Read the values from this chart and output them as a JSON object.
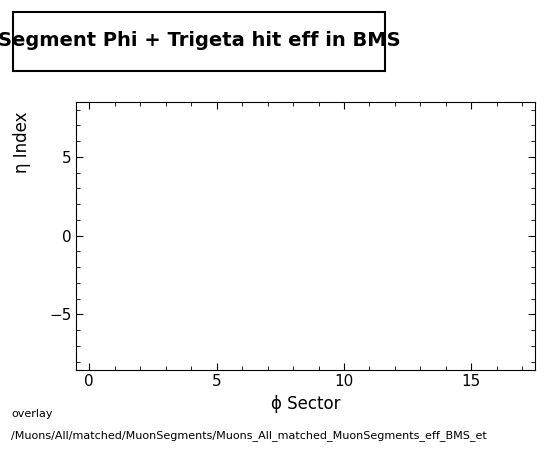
{
  "title": "Segment Phi + Trigeta hit eff in BMS",
  "xlabel": "ϕ Sector",
  "ylabel": "η Index",
  "xlim": [
    -0.5,
    17.5
  ],
  "ylim": [
    -8.5,
    8.5
  ],
  "xticks": [
    0,
    5,
    10,
    15
  ],
  "yticks": [
    -5,
    0,
    5
  ],
  "background_color": "#ffffff",
  "plot_bg_color": "#ffffff",
  "footer_text1": "overlay",
  "footer_text2": "/Muons/All/matched/MuonSegments/Muons_All_matched_MuonSegments_eff_BMS_et",
  "title_fontsize": 14,
  "axis_label_fontsize": 12,
  "tick_fontsize": 11,
  "footer_fontsize": 8
}
